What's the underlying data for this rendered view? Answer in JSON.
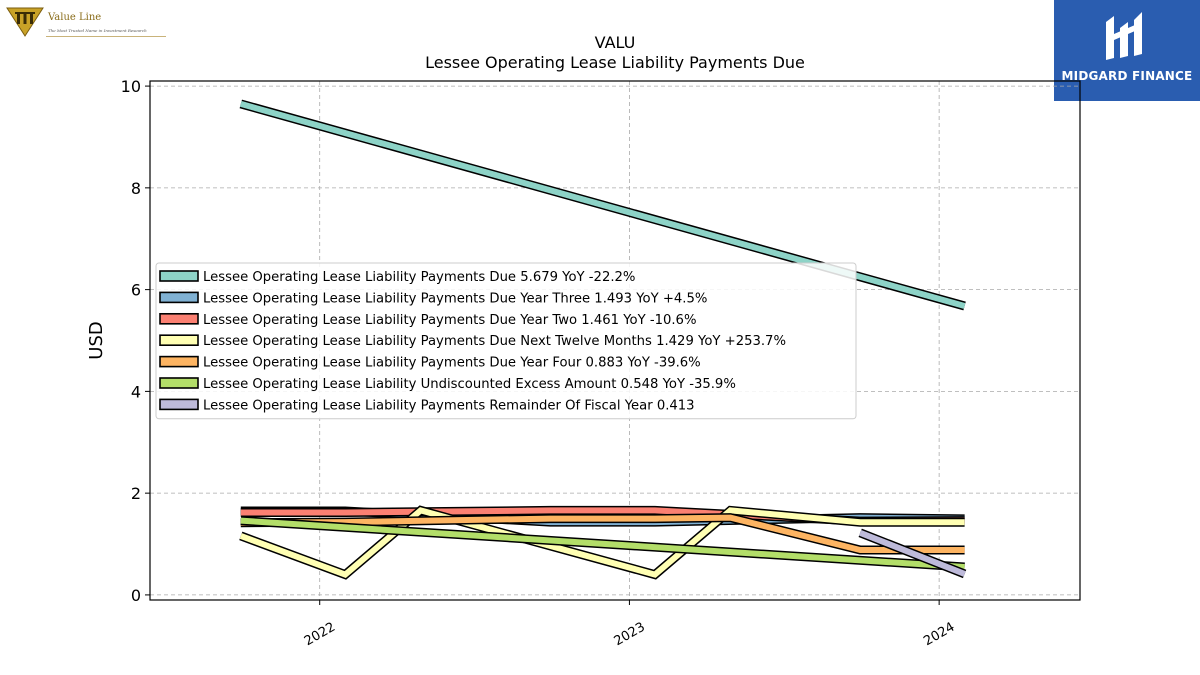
{
  "brand_left": {
    "name": "Value Line",
    "tagline": "The Most Trusted Name in Investment Research"
  },
  "brand_right": {
    "name": "MIDGARD FINANCE"
  },
  "chart_data": {
    "type": "line",
    "title": "VALU",
    "subtitle": "Lessee Operating Lease Liability Payments Due",
    "xlabel": "",
    "ylabel": "USD",
    "x_ticks": [
      "2022",
      "2023",
      "2024"
    ],
    "y_ticks": [
      0,
      2,
      4,
      6,
      8,
      10
    ],
    "xlim": [
      "2021-06-15",
      "2024-06-15"
    ],
    "ylim": [
      -0.1,
      10.1
    ],
    "grid": true,
    "legend_position": "center-left",
    "series": [
      {
        "name": "Lessee Operating Lease Liability Payments Due",
        "legend_label": "Lessee Operating Lease Liability Payments Due  5.679 YoY -22.2%",
        "color": "#8dd3c7",
        "points": [
          [
            "2021-09-30",
            9.65
          ],
          [
            "2024-01-31",
            5.679
          ]
        ]
      },
      {
        "name": "Lessee Operating Lease Liability Payments Due Year Three",
        "legend_label": "Lessee Operating Lease Liability Payments Due Year Three  1.493 YoY +4.5%",
        "color": "#80b1d3",
        "points": [
          [
            "2021-09-30",
            1.65
          ],
          [
            "2022-01-31",
            1.65
          ],
          [
            "2022-09-30",
            1.43
          ],
          [
            "2023-01-31",
            1.43
          ],
          [
            "2023-09-30",
            1.52
          ],
          [
            "2024-01-31",
            1.493
          ]
        ]
      },
      {
        "name": "Lessee Operating Lease Liability Payments Due Year Two",
        "legend_label": "Lessee Operating Lease Liability Payments Due Year Two  1.461 YoY -10.6%",
        "color": "#fb8072",
        "points": [
          [
            "2021-09-30",
            1.62
          ],
          [
            "2022-01-31",
            1.62
          ],
          [
            "2022-09-30",
            1.66
          ],
          [
            "2023-01-31",
            1.66
          ],
          [
            "2023-09-30",
            1.45
          ],
          [
            "2024-01-31",
            1.461
          ]
        ]
      },
      {
        "name": "Lessee Operating Lease Liability Payments Due Next Twelve Months",
        "legend_label": "Lessee Operating Lease Liability Payments Due Next Twelve Months  1.429 YoY +253.7%",
        "color": "#ffffb3",
        "points": [
          [
            "2021-09-30",
            1.16
          ],
          [
            "2022-01-31",
            0.4
          ],
          [
            "2022-04-30",
            1.66
          ],
          [
            "2023-01-31",
            0.4
          ],
          [
            "2023-04-30",
            1.66
          ],
          [
            "2023-09-30",
            1.429
          ],
          [
            "2024-01-31",
            1.429
          ]
        ]
      },
      {
        "name": "Lessee Operating Lease Liability Payments Due Year Four",
        "legend_label": "Lessee Operating Lease Liability Payments Due Year Four  0.883 YoY -39.6%",
        "color": "#fdb462",
        "points": [
          [
            "2021-09-30",
            1.42
          ],
          [
            "2022-01-31",
            1.43
          ],
          [
            "2022-09-30",
            1.5
          ],
          [
            "2023-01-31",
            1.5
          ],
          [
            "2023-04-30",
            1.52
          ],
          [
            "2023-09-30",
            0.883
          ],
          [
            "2024-01-31",
            0.883
          ]
        ]
      },
      {
        "name": "Lessee Operating Lease Liability Undiscounted Excess Amount",
        "legend_label": "Lessee Operating Lease Liability Undiscounted Excess Amount  0.548 YoY -35.9%",
        "color": "#b3de69",
        "points": [
          [
            "2021-09-30",
            1.46
          ],
          [
            "2024-01-31",
            0.548
          ]
        ]
      },
      {
        "name": "Lessee Operating Lease Liability Payments Remainder Of Fiscal Year",
        "legend_label": "Lessee Operating Lease Liability Payments Remainder Of Fiscal Year  0.413",
        "color": "#bebada",
        "points": [
          [
            "2023-09-30",
            1.22
          ],
          [
            "2024-01-31",
            0.413
          ]
        ]
      }
    ]
  }
}
